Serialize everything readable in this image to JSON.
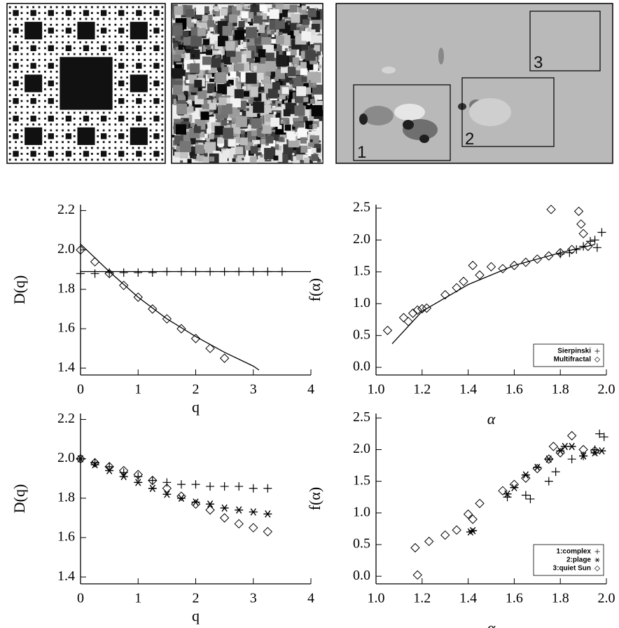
{
  "images": {
    "region_labels": [
      "1",
      "2",
      "3"
    ]
  },
  "chart_data": [
    {
      "type": "scatter",
      "x_label": "q",
      "y_label": "D(q)",
      "xlim": [
        0,
        4
      ],
      "ylim": [
        1.365,
        2.23
      ],
      "xticks": [
        0,
        1,
        2,
        3,
        4
      ],
      "yticks": [
        1.4,
        1.6,
        1.8,
        {
          "value": 2,
          "label": "2.0"
        },
        2.2
      ],
      "series": [
        {
          "marker": "plus",
          "color": "#000000",
          "x": [
            0,
            0.25,
            0.5,
            0.75,
            1,
            1.25,
            1.5,
            1.75,
            2,
            2.25,
            2.5,
            2.75,
            3,
            3.25,
            3.5
          ],
          "values": [
            1.88,
            1.88,
            1.885,
            1.885,
            1.885,
            1.885,
            1.89,
            1.89,
            1.89,
            1.89,
            1.89,
            1.89,
            1.89,
            1.89,
            1.89
          ]
        },
        {
          "marker": "diamond",
          "color": "#000000",
          "x": [
            0,
            0.25,
            0.5,
            0.75,
            1,
            1.25,
            1.5,
            1.75,
            2,
            2.25,
            2.5
          ],
          "values": [
            2.0,
            1.94,
            1.88,
            1.82,
            1.76,
            1.7,
            1.65,
            1.6,
            1.55,
            1.5,
            1.45
          ]
        },
        {
          "mode": "line",
          "color": "#000000",
          "x": [
            0,
            4
          ],
          "values": [
            1.89,
            1.89
          ]
        },
        {
          "mode": "line",
          "color": "#000000",
          "x": [
            0,
            0.5,
            1,
            1.5,
            2,
            2.5,
            3,
            3.1
          ],
          "values": [
            2.03,
            1.89,
            1.76,
            1.65,
            1.56,
            1.48,
            1.41,
            1.39
          ]
        }
      ]
    },
    {
      "type": "scatter",
      "x_label": "α",
      "y_label": "f(α)",
      "legend": "lower right",
      "xlim": [
        1.0,
        2.0
      ],
      "ylim": [
        -0.12,
        2.555
      ],
      "xticks": [
        {
          "value": 1,
          "label": "1.0"
        },
        1.2,
        1.4,
        1.6,
        1.8,
        {
          "value": 2,
          "label": "2.0"
        }
      ],
      "yticks": [
        {
          "value": 0,
          "label": "0.0"
        },
        0.5,
        {
          "value": 1,
          "label": "1.0"
        },
        1.5,
        {
          "value": 2,
          "label": "2.0"
        },
        2.5
      ],
      "series": [
        {
          "name": "Sierpinski",
          "marker": "plus",
          "color": "#000000",
          "x": [
            1.8,
            1.84,
            1.87,
            1.9,
            1.93,
            1.95,
            1.98,
            1.96
          ],
          "values": [
            1.78,
            1.8,
            1.85,
            1.9,
            1.98,
            2.0,
            2.12,
            1.88
          ]
        },
        {
          "name": "Multifractal",
          "marker": "diamond",
          "color": "#000000",
          "x": [
            1.05,
            1.12,
            1.14,
            1.16,
            1.18,
            1.2,
            1.22,
            1.3,
            1.35,
            1.38,
            1.42,
            1.45,
            1.5,
            1.55,
            1.6,
            1.65,
            1.7,
            1.75,
            1.76,
            1.8,
            1.85,
            1.88,
            1.89,
            1.9,
            1.92
          ],
          "values": [
            0.58,
            0.78,
            0.72,
            0.85,
            0.9,
            0.92,
            0.93,
            1.14,
            1.25,
            1.35,
            1.6,
            1.45,
            1.58,
            1.55,
            1.6,
            1.65,
            1.7,
            1.75,
            2.48,
            1.8,
            1.85,
            2.45,
            2.25,
            2.1,
            1.9
          ]
        },
        {
          "mode": "line",
          "color": "#000000",
          "x": [
            1.07,
            1.2,
            1.4,
            1.6,
            1.8,
            1.95
          ],
          "values": [
            0.37,
            0.88,
            1.3,
            1.6,
            1.8,
            1.93
          ]
        }
      ]
    },
    {
      "type": "scatter",
      "x_label": "q",
      "y_label": "D(q)",
      "xlim": [
        0,
        4
      ],
      "ylim": [
        1.365,
        2.23
      ],
      "xticks": [
        0,
        1,
        2,
        3,
        4
      ],
      "yticks": [
        1.4,
        1.6,
        1.8,
        {
          "value": 2,
          "label": "2.0"
        },
        2.2
      ],
      "series": [
        {
          "marker": "plus",
          "color": "#000000",
          "x": [
            0,
            0.25,
            0.5,
            0.75,
            1,
            1.25,
            1.5,
            1.75,
            2,
            2.25,
            2.5,
            2.75,
            3,
            3.25
          ],
          "values": [
            2.0,
            1.98,
            1.96,
            1.93,
            1.91,
            1.89,
            1.88,
            1.87,
            1.87,
            1.86,
            1.86,
            1.86,
            1.85,
            1.85
          ]
        },
        {
          "marker": "asterisk",
          "color": "#000000",
          "x": [
            0,
            0.25,
            0.5,
            0.75,
            1,
            1.25,
            1.5,
            1.75,
            2,
            2.25,
            2.5,
            2.75,
            3,
            3.25
          ],
          "values": [
            2.0,
            1.97,
            1.94,
            1.91,
            1.88,
            1.85,
            1.82,
            1.8,
            1.78,
            1.77,
            1.75,
            1.74,
            1.73,
            1.72
          ]
        },
        {
          "marker": "diamond",
          "color": "#000000",
          "x": [
            0,
            0.25,
            0.5,
            0.75,
            1,
            1.25,
            1.5,
            1.75,
            2,
            2.25,
            2.5,
            2.75,
            3,
            3.25
          ],
          "values": [
            2.0,
            1.98,
            1.96,
            1.94,
            1.92,
            1.89,
            1.85,
            1.81,
            1.77,
            1.74,
            1.7,
            1.67,
            1.65,
            1.63
          ]
        }
      ]
    },
    {
      "type": "scatter",
      "x_label": "α",
      "y_label": "f(α)",
      "legend": "lower right",
      "xlim": [
        1.0,
        2.0
      ],
      "ylim": [
        -0.12,
        2.57
      ],
      "xticks": [
        {
          "value": 1,
          "label": "1.0"
        },
        1.2,
        1.4,
        1.6,
        1.8,
        {
          "value": 2,
          "label": "2.0"
        }
      ],
      "yticks": [
        {
          "value": 0,
          "label": "0.0"
        },
        0.5,
        {
          "value": 1,
          "label": "1.0"
        },
        1.5,
        {
          "value": 2,
          "label": "2.0"
        },
        2.5
      ],
      "series": [
        {
          "name": "1:complex",
          "marker": "plus",
          "color": "#000000",
          "x": [
            1.57,
            1.65,
            1.67,
            1.75,
            1.78,
            1.85,
            1.9,
            1.95,
            1.97,
            1.99
          ],
          "values": [
            1.25,
            1.28,
            1.22,
            1.5,
            1.65,
            1.85,
            1.9,
            2.0,
            2.25,
            2.2
          ]
        },
        {
          "name": "2:plage",
          "marker": "asterisk",
          "color": "#000000",
          "x": [
            1.41,
            1.42,
            1.57,
            1.6,
            1.65,
            1.7,
            1.75,
            1.8,
            1.82,
            1.85,
            1.9,
            1.95,
            1.98
          ],
          "values": [
            0.7,
            0.72,
            1.3,
            1.4,
            1.6,
            1.72,
            1.85,
            1.98,
            2.05,
            2.05,
            1.9,
            1.95,
            1.98
          ]
        },
        {
          "name": "3:quiet Sun",
          "marker": "diamond",
          "color": "#000000",
          "x": [
            1.17,
            1.18,
            1.23,
            1.3,
            1.35,
            1.4,
            1.42,
            1.45,
            1.55,
            1.6,
            1.65,
            1.7,
            1.75,
            1.77,
            1.8,
            1.85,
            1.9,
            1.95
          ],
          "values": [
            0.45,
            0.02,
            0.55,
            0.65,
            0.73,
            0.98,
            0.9,
            1.15,
            1.35,
            1.45,
            1.55,
            1.7,
            1.85,
            2.05,
            1.95,
            2.22,
            2.0,
            1.98
          ]
        }
      ]
    }
  ]
}
